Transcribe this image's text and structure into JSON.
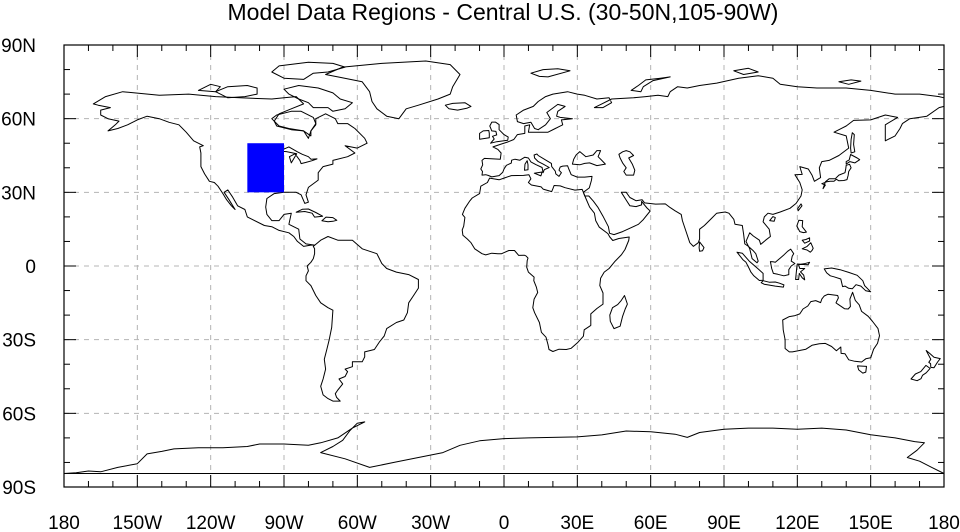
{
  "title": "Model Data Regions - Central U.S. (30-50N,105-90W)",
  "map": {
    "projection": "cylindrical-equidistant",
    "lon_range": [
      -180,
      180
    ],
    "lat_range": [
      -90,
      90
    ],
    "gridlines": "dashed",
    "grid_color": "#b4b4b4",
    "coast_color": "#000000",
    "region": {
      "lat_min": 30,
      "lat_max": 50,
      "lon_min": -105,
      "lon_max": -90,
      "color": "#0000ff"
    },
    "x_ticks": [
      {
        "lon": -180,
        "label": "180"
      },
      {
        "lon": -150,
        "label": "150W"
      },
      {
        "lon": -120,
        "label": "120W"
      },
      {
        "lon": -90,
        "label": "90W"
      },
      {
        "lon": -60,
        "label": "60W"
      },
      {
        "lon": -30,
        "label": "30W"
      },
      {
        "lon": 0,
        "label": "0"
      },
      {
        "lon": 30,
        "label": "30E"
      },
      {
        "lon": 60,
        "label": "60E"
      },
      {
        "lon": 90,
        "label": "90E"
      },
      {
        "lon": 120,
        "label": "120E"
      },
      {
        "lon": 150,
        "label": "150E"
      },
      {
        "lon": 180,
        "label": "180"
      }
    ],
    "y_ticks": [
      {
        "lat": 90,
        "label": "90N"
      },
      {
        "lat": 60,
        "label": "60N"
      },
      {
        "lat": 30,
        "label": "30N"
      },
      {
        "lat": 0,
        "label": "0"
      },
      {
        "lat": -30,
        "label": "30S"
      },
      {
        "lat": -60,
        "label": "60S"
      },
      {
        "lat": -90,
        "label": "90S"
      }
    ]
  }
}
